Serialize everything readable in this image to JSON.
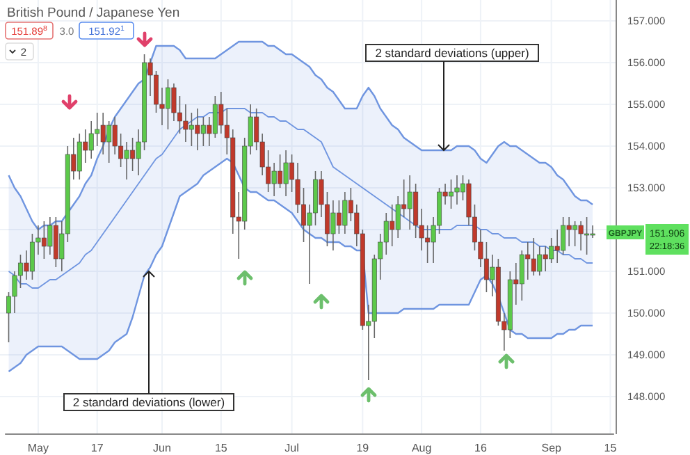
{
  "chart_data": {
    "type": "candlestick",
    "title": "British Pound / Japanese Yen",
    "categories": [
      null,
      null,
      null,
      null,
      null,
      "May",
      null,
      null,
      null,
      null,
      null,
      null,
      null,
      null,
      null,
      "17",
      null,
      null,
      null,
      null,
      null,
      null,
      null,
      null,
      null,
      null,
      "Jun",
      null,
      null,
      null,
      null,
      null,
      null,
      null,
      null,
      null,
      "15",
      null,
      null,
      null,
      null,
      null,
      null,
      null,
      null,
      null,
      null,
      null,
      "Jul",
      null,
      null,
      null,
      null,
      null,
      null,
      null,
      null,
      null,
      null,
      null,
      "19",
      null,
      null,
      null,
      null,
      null,
      null,
      null,
      null,
      null,
      "Aug",
      null,
      null,
      null,
      null,
      null,
      null,
      null,
      null,
      null,
      "16",
      null,
      null,
      null,
      null,
      null,
      null,
      null,
      null,
      null,
      null,
      null,
      "Sep",
      null,
      null,
      null,
      null,
      null,
      null,
      null,
      null,
      null,
      "15"
    ],
    "ohlc": [
      [
        150.0,
        150.5,
        149.3,
        150.4
      ],
      [
        150.4,
        151.0,
        150.0,
        150.9
      ],
      [
        150.9,
        151.4,
        150.6,
        151.2
      ],
      [
        151.2,
        151.5,
        150.8,
        151.0
      ],
      [
        151.0,
        151.9,
        150.8,
        151.7
      ],
      [
        151.7,
        152.1,
        151.4,
        151.8
      ],
      [
        151.8,
        152.2,
        151.3,
        151.6
      ],
      [
        151.6,
        152.3,
        151.4,
        152.1
      ],
      [
        152.1,
        152.3,
        151.1,
        151.3
      ],
      [
        151.3,
        152.2,
        151.0,
        151.9
      ],
      [
        151.9,
        154.0,
        151.7,
        153.8
      ],
      [
        153.8,
        154.2,
        153.2,
        153.4
      ],
      [
        153.4,
        154.3,
        153.2,
        154.1
      ],
      [
        154.1,
        154.4,
        153.6,
        153.9
      ],
      [
        153.9,
        154.6,
        153.7,
        154.3
      ],
      [
        154.3,
        154.8,
        154.0,
        154.4
      ],
      [
        154.5,
        154.8,
        153.8,
        154.1
      ],
      [
        154.1,
        154.6,
        153.6,
        154.5
      ],
      [
        154.5,
        154.7,
        153.8,
        154.0
      ],
      [
        154.0,
        154.3,
        153.5,
        153.7
      ],
      [
        153.7,
        154.1,
        153.2,
        153.9
      ],
      [
        153.9,
        154.2,
        153.4,
        153.7
      ],
      [
        153.7,
        154.4,
        153.3,
        154.1
      ],
      [
        154.1,
        156.2,
        153.9,
        156.0
      ],
      [
        156.0,
        156.1,
        155.2,
        155.7
      ],
      [
        155.7,
        155.8,
        154.8,
        155.0
      ],
      [
        155.0,
        155.4,
        154.5,
        154.9
      ],
      [
        154.9,
        155.6,
        154.4,
        155.4
      ],
      [
        155.4,
        155.5,
        154.6,
        154.8
      ],
      [
        154.8,
        155.2,
        154.3,
        154.6
      ],
      [
        154.6,
        155.0,
        154.1,
        154.4
      ],
      [
        154.4,
        154.8,
        154.0,
        154.5
      ],
      [
        154.5,
        154.9,
        153.9,
        154.3
      ],
      [
        154.3,
        154.7,
        154.0,
        154.5
      ],
      [
        154.5,
        154.7,
        154.0,
        154.3
      ],
      [
        154.3,
        155.2,
        154.2,
        155.0
      ],
      [
        155.0,
        155.3,
        154.3,
        154.5
      ],
      [
        154.5,
        154.9,
        153.8,
        154.2
      ],
      [
        154.2,
        154.4,
        151.9,
        152.3
      ],
      [
        152.3,
        152.9,
        151.3,
        152.2
      ],
      [
        152.2,
        154.2,
        152.0,
        154.0
      ],
      [
        154.0,
        155.0,
        153.8,
        154.7
      ],
      [
        154.7,
        154.9,
        153.9,
        154.1
      ],
      [
        154.1,
        154.3,
        153.3,
        153.5
      ],
      [
        153.5,
        153.9,
        152.9,
        153.1
      ],
      [
        153.1,
        153.6,
        152.8,
        153.4
      ],
      [
        153.4,
        153.8,
        153.0,
        153.1
      ],
      [
        153.1,
        153.9,
        152.8,
        153.6
      ],
      [
        153.6,
        153.8,
        152.9,
        153.2
      ],
      [
        153.2,
        153.6,
        152.4,
        152.6
      ],
      [
        152.6,
        153.0,
        151.7,
        152.1
      ],
      [
        152.1,
        152.6,
        150.7,
        152.4
      ],
      [
        152.4,
        153.4,
        152.1,
        153.2
      ],
      [
        153.2,
        153.4,
        152.3,
        152.6
      ],
      [
        152.6,
        152.9,
        151.6,
        151.9
      ],
      [
        151.9,
        152.7,
        151.5,
        152.4
      ],
      [
        152.4,
        152.7,
        151.9,
        152.1
      ],
      [
        152.1,
        152.9,
        151.9,
        152.7
      ],
      [
        152.7,
        153.0,
        152.2,
        152.4
      ],
      [
        152.4,
        152.6,
        151.6,
        151.9
      ],
      [
        151.9,
        152.0,
        149.6,
        149.7
      ],
      [
        149.7,
        150.2,
        148.4,
        149.8
      ],
      [
        149.8,
        151.4,
        149.4,
        151.3
      ],
      [
        151.3,
        151.9,
        150.8,
        151.7
      ],
      [
        151.7,
        152.4,
        151.4,
        152.2
      ],
      [
        152.2,
        152.6,
        151.6,
        152.0
      ],
      [
        152.0,
        152.8,
        151.8,
        152.6
      ],
      [
        152.6,
        153.2,
        152.3,
        152.5
      ],
      [
        152.5,
        153.3,
        152.0,
        152.9
      ],
      [
        152.9,
        153.1,
        151.8,
        152.1
      ],
      [
        152.1,
        152.5,
        151.5,
        151.8
      ],
      [
        151.8,
        152.1,
        151.2,
        151.7
      ],
      [
        151.7,
        152.3,
        151.2,
        152.1
      ],
      [
        152.1,
        153.0,
        151.9,
        152.9
      ],
      [
        152.9,
        153.1,
        152.6,
        152.8
      ],
      [
        152.8,
        153.2,
        152.5,
        152.9
      ],
      [
        152.9,
        153.3,
        152.6,
        153.0
      ],
      [
        152.9,
        153.3,
        152.7,
        153.1
      ],
      [
        153.1,
        153.2,
        152.1,
        152.3
      ],
      [
        152.3,
        152.6,
        151.5,
        151.7
      ],
      [
        151.7,
        152.0,
        151.1,
        151.3
      ],
      [
        151.3,
        151.7,
        150.5,
        150.8
      ],
      [
        150.8,
        151.4,
        150.4,
        151.1
      ],
      [
        151.1,
        151.3,
        149.7,
        149.8
      ],
      [
        149.8,
        150.0,
        149.1,
        149.6
      ],
      [
        149.6,
        151.0,
        149.4,
        150.8
      ],
      [
        150.8,
        151.2,
        150.2,
        150.7
      ],
      [
        150.7,
        151.5,
        150.3,
        151.4
      ],
      [
        151.4,
        151.7,
        150.8,
        151.3
      ],
      [
        151.3,
        151.8,
        150.9,
        151.0
      ],
      [
        151.0,
        151.6,
        150.9,
        151.4
      ],
      [
        151.4,
        151.6,
        151.0,
        151.3
      ],
      [
        151.3,
        151.8,
        151.2,
        151.6
      ],
      [
        151.6,
        152.0,
        151.2,
        151.5
      ],
      [
        151.5,
        152.3,
        151.4,
        152.1
      ],
      [
        152.1,
        152.3,
        151.6,
        152.0
      ],
      [
        152.0,
        152.2,
        151.6,
        152.1
      ],
      [
        152.1,
        152.2,
        151.5,
        151.9
      ],
      [
        151.9,
        152.3,
        151.4,
        151.9
      ],
      [
        151.9,
        152.1,
        151.8,
        151.9
      ],
      null,
      null,
      null
    ],
    "series": [
      {
        "type": "line",
        "color": "#6f95e0",
        "values": [
          151.0,
          150.9,
          150.7,
          150.7,
          150.6,
          150.6,
          150.7,
          150.8,
          150.8,
          150.9,
          151.0,
          151.1,
          151.2,
          151.4,
          151.5,
          151.7,
          151.9,
          152.1,
          152.3,
          152.5,
          152.7,
          152.9,
          153.1,
          153.3,
          153.5,
          153.7,
          153.8,
          154.0,
          154.2,
          154.4,
          154.5,
          154.6,
          154.7,
          154.7,
          154.8,
          154.8,
          154.8,
          154.9,
          154.9,
          154.9,
          154.9,
          154.8,
          154.8,
          154.8,
          154.7,
          154.7,
          154.6,
          154.6,
          154.5,
          154.4,
          154.4,
          154.3,
          154.2,
          154.1,
          153.8,
          153.5,
          153.4,
          153.3,
          153.2,
          153.1,
          153.0,
          152.9,
          152.8,
          152.7,
          152.6,
          152.5,
          152.4,
          152.3,
          152.2,
          152.1,
          152.0,
          152.0,
          152.0,
          152.0,
          152.0,
          152.0,
          152.1,
          152.1,
          152.1,
          152.1,
          152.0,
          152.0,
          151.9,
          151.9,
          151.8,
          151.8,
          151.8,
          151.7,
          151.7,
          151.7,
          151.6,
          151.6,
          151.5,
          151.5,
          151.4,
          151.4,
          151.3,
          151.3,
          151.2,
          151.2,
          null,
          null,
          null
        ],
        "lower": [
          148.6,
          148.7,
          148.8,
          149.0,
          149.1,
          149.2,
          149.2,
          149.2,
          149.2,
          149.2,
          149.1,
          149.0,
          148.9,
          148.9,
          148.9,
          148.9,
          149.0,
          149.1,
          149.3,
          149.4,
          149.5,
          149.9,
          150.4,
          150.9,
          151.1,
          151.4,
          151.6,
          152.0,
          152.4,
          152.8,
          152.9,
          153.0,
          153.1,
          153.3,
          153.4,
          153.5,
          153.6,
          153.7,
          153.6,
          153.3,
          153.0,
          152.9,
          152.9,
          152.8,
          152.7,
          152.7,
          152.6,
          152.5,
          152.4,
          152.2,
          152.0,
          151.9,
          151.8,
          151.8,
          151.7,
          151.7,
          151.7,
          151.6,
          151.6,
          151.5,
          151.5,
          150.0,
          150.0,
          150.0,
          150.0,
          150.0,
          150.0,
          150.1,
          150.1,
          150.1,
          150.1,
          150.1,
          150.1,
          150.2,
          150.2,
          150.2,
          150.2,
          150.2,
          150.2,
          150.5,
          150.8,
          150.9,
          150.7,
          150.4,
          150.0,
          149.6,
          149.5,
          149.5,
          149.4,
          149.4,
          149.4,
          149.4,
          149.4,
          149.5,
          149.5,
          149.6,
          149.6,
          149.7,
          149.7,
          149.7,
          null,
          null,
          null
        ],
        "upper": [
          153.3,
          153.0,
          152.8,
          152.5,
          152.2,
          152.0,
          152.1,
          152.1,
          152.2,
          152.2,
          152.4,
          152.6,
          152.8,
          153.1,
          153.3,
          153.7,
          154.0,
          154.4,
          154.7,
          154.9,
          155.1,
          155.3,
          155.5,
          155.6,
          156.0,
          156.4,
          156.4,
          156.4,
          156.4,
          156.3,
          156.1,
          156.1,
          156.1,
          156.1,
          156.1,
          156.1,
          156.2,
          156.3,
          156.4,
          156.5,
          156.5,
          156.5,
          156.5,
          156.5,
          156.4,
          156.4,
          156.3,
          156.2,
          156.2,
          156.1,
          156.0,
          155.9,
          155.7,
          155.6,
          155.4,
          155.3,
          155.1,
          154.9,
          154.9,
          154.9,
          155.2,
          155.4,
          155.2,
          154.9,
          154.7,
          154.5,
          154.4,
          154.2,
          154.1,
          154.0,
          153.9,
          153.9,
          153.9,
          153.9,
          153.9,
          153.9,
          154.0,
          154.0,
          154.0,
          153.9,
          153.7,
          153.6,
          153.8,
          154.0,
          154.1,
          154.0,
          154.0,
          153.9,
          153.8,
          153.7,
          153.6,
          153.6,
          153.5,
          153.3,
          153.2,
          153.0,
          152.8,
          152.7,
          152.7,
          152.6,
          null,
          null,
          null
        ]
      },
      {
        "type": "line",
        "color": "#6f95e0",
        "values": [
          153.3,
          153.0,
          152.8,
          152.5,
          152.2,
          152.0,
          152.1,
          152.1,
          152.2,
          152.2,
          152.4,
          152.6,
          152.8,
          153.1,
          153.3,
          153.7,
          154.0,
          154.4,
          154.7,
          154.9,
          155.1,
          155.3,
          155.5,
          155.6,
          156.0,
          156.4,
          156.4,
          156.4,
          156.4,
          156.3,
          156.1,
          156.1,
          156.1,
          156.1,
          156.1,
          156.1,
          156.2,
          156.3,
          156.4,
          156.5,
          156.5,
          156.5,
          156.5,
          156.5,
          156.4,
          156.4,
          156.3,
          156.2,
          156.2,
          156.1,
          156.0,
          155.9,
          155.7,
          155.6,
          155.4,
          155.3,
          155.1,
          154.9,
          154.9,
          154.9,
          155.2,
          155.4,
          155.2,
          154.9,
          154.7,
          154.5,
          154.4,
          154.2,
          154.1,
          154.0,
          153.9,
          153.9,
          153.9,
          153.9,
          153.9,
          153.9,
          154.0,
          154.0,
          154.0,
          153.9,
          153.7,
          153.6,
          153.8,
          154.0,
          154.1,
          154.0,
          154.0,
          153.9,
          153.8,
          153.7,
          153.6,
          153.6,
          153.5,
          153.3,
          153.2,
          153.0,
          152.8,
          152.7,
          152.7,
          152.6,
          null,
          null,
          null
        ]
      },
      {
        "type": "line",
        "color": "#6f95e0",
        "values": [
          148.6,
          148.7,
          148.8,
          149.0,
          149.1,
          149.2,
          149.2,
          149.2,
          149.2,
          149.2,
          149.1,
          149.0,
          148.9,
          148.9,
          148.9,
          148.9,
          149.0,
          149.1,
          149.3,
          149.4,
          149.5,
          149.9,
          150.4,
          150.9,
          151.1,
          151.4,
          151.6,
          152.0,
          152.4,
          152.8,
          152.9,
          153.0,
          153.1,
          153.3,
          153.4,
          153.5,
          153.6,
          153.7,
          153.6,
          153.3,
          153.0,
          152.9,
          152.9,
          152.8,
          152.7,
          152.7,
          152.6,
          152.5,
          152.4,
          152.2,
          152.0,
          151.9,
          151.8,
          151.8,
          151.7,
          151.7,
          151.7,
          151.6,
          151.6,
          151.5,
          151.5,
          150.0,
          150.0,
          150.0,
          150.0,
          150.0,
          150.0,
          150.1,
          150.1,
          150.1,
          150.1,
          150.1,
          150.1,
          150.2,
          150.2,
          150.2,
          150.2,
          150.2,
          150.2,
          150.5,
          150.8,
          150.9,
          150.7,
          150.4,
          150.0,
          149.6,
          149.5,
          149.5,
          149.4,
          149.4,
          149.4,
          149.4,
          149.4,
          149.5,
          149.5,
          149.6,
          149.6,
          149.7,
          149.7,
          149.7,
          null,
          null,
          null
        ]
      }
    ],
    "ylim": [
      147.1,
      157.5
    ],
    "yticks": [
      {
        "value": 148,
        "label": "148.000"
      },
      {
        "value": 149,
        "label": "149.000"
      },
      {
        "value": 150,
        "label": "150.000"
      },
      {
        "value": 151,
        "label": "151.000"
      },
      {
        "value": 152,
        "label": null
      },
      {
        "value": 153,
        "label": "153.000"
      },
      {
        "value": 154,
        "label": "154.000"
      },
      {
        "value": 155,
        "label": "155.000"
      },
      {
        "value": 156,
        "label": "156.000"
      },
      {
        "value": 157,
        "label": "157.000"
      }
    ],
    "grid": true,
    "annotations": [
      "151.89$^{8}$",
      "3.0",
      "151.92$^{1}$",
      "2",
      {
        "text": "2 standard deviations (upper)",
        "y": 153.9
      },
      {
        "text": "2 standard deviations (lower)",
        "y": 151.0
      },
      "GBPJPY",
      "151.906",
      "22:18:36"
    ]
  }
}
